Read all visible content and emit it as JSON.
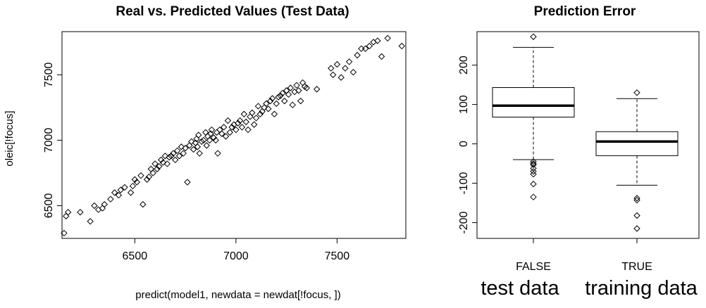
{
  "chart_data": [
    {
      "type": "scatter",
      "title": "Real vs. Predicted Values (Test Data)",
      "xlabel": "predict(model1, newdata = newdat[!focus, ])",
      "ylabel": "oleic[!focus]",
      "xlim": [
        6140,
        7840
      ],
      "ylim": [
        6250,
        7830
      ],
      "xticks": [
        "6500",
        "7000",
        "7500"
      ],
      "yticks": [
        "6500",
        "7000",
        "7500"
      ],
      "grid": false,
      "marker": "open-diamond",
      "points_x": [
        6150,
        6160,
        6170,
        6230,
        6280,
        6300,
        6320,
        6340,
        6350,
        6380,
        6400,
        6420,
        6430,
        6450,
        6480,
        6490,
        6500,
        6510,
        6530,
        6540,
        6560,
        6570,
        6580,
        6590,
        6600,
        6610,
        6620,
        6630,
        6640,
        6650,
        6660,
        6670,
        6680,
        6690,
        6700,
        6710,
        6720,
        6730,
        6740,
        6750,
        6760,
        6770,
        6780,
        6790,
        6800,
        6805,
        6810,
        6815,
        6820,
        6830,
        6840,
        6850,
        6855,
        6860,
        6870,
        6875,
        6880,
        6890,
        6900,
        6905,
        6910,
        6920,
        6930,
        6940,
        6950,
        6960,
        6970,
        6980,
        6990,
        7000,
        7010,
        7020,
        7030,
        7040,
        7050,
        7060,
        7070,
        7080,
        7090,
        7100,
        7110,
        7120,
        7130,
        7140,
        7150,
        7160,
        7170,
        7180,
        7190,
        7200,
        7210,
        7220,
        7230,
        7240,
        7250,
        7260,
        7270,
        7280,
        7290,
        7300,
        7310,
        7320,
        7330,
        7340,
        7350,
        7400,
        7470,
        7480,
        7500,
        7520,
        7540,
        7560,
        7580,
        7600,
        7620,
        7640,
        7660,
        7680,
        7700,
        7720,
        7750,
        7820
      ],
      "points_y": [
        6290,
        6420,
        6450,
        6450,
        6380,
        6500,
        6470,
        6480,
        6510,
        6550,
        6600,
        6580,
        6620,
        6640,
        6600,
        6650,
        6700,
        6680,
        6730,
        6510,
        6700,
        6720,
        6780,
        6750,
        6820,
        6780,
        6800,
        6850,
        6830,
        6880,
        6820,
        6870,
        6880,
        6900,
        6850,
        6920,
        6880,
        6950,
        6900,
        6940,
        6680,
        6960,
        6990,
        6930,
        6980,
        7010,
        6950,
        7040,
        6900,
        6990,
        7000,
        7060,
        6960,
        7030,
        7000,
        7050,
        7080,
        7020,
        7000,
        7060,
        6900,
        7080,
        7050,
        7100,
        7030,
        7150,
        7060,
        7100,
        7120,
        7080,
        7130,
        7150,
        7100,
        7200,
        7140,
        7080,
        7180,
        7210,
        7120,
        7170,
        7260,
        7200,
        7220,
        7250,
        7280,
        7240,
        7300,
        7320,
        7200,
        7280,
        7330,
        7340,
        7360,
        7300,
        7380,
        7350,
        7400,
        7270,
        7370,
        7420,
        7380,
        7300,
        7440,
        7410,
        7400,
        7390,
        7550,
        7500,
        7580,
        7480,
        7550,
        7600,
        7520,
        7650,
        7700,
        7700,
        7720,
        7750,
        7760,
        7640,
        7780,
        7720
      ]
    },
    {
      "type": "box",
      "title": "Prediction Error",
      "xlabel": "",
      "ylabel": "",
      "ylim": [
        -240,
        285
      ],
      "yticks": [
        "-200",
        "-100",
        "0",
        "100",
        "200"
      ],
      "categories": [
        "FALSE",
        "TRUE"
      ],
      "annotations": [
        "test data",
        "training data"
      ],
      "boxes": [
        {
          "whisker_low": -40,
          "q1": 68,
          "median": 97,
          "q3": 143,
          "whisker_high": 245,
          "outliers": [
            272,
            -45,
            -50,
            -53,
            -62,
            -70,
            -77,
            -102,
            -135
          ]
        },
        {
          "whisker_low": -105,
          "q1": -30,
          "median": 6,
          "q3": 31,
          "whisker_high": 115,
          "outliers": [
            130,
            -138,
            -143,
            -182,
            -215
          ]
        }
      ]
    }
  ]
}
